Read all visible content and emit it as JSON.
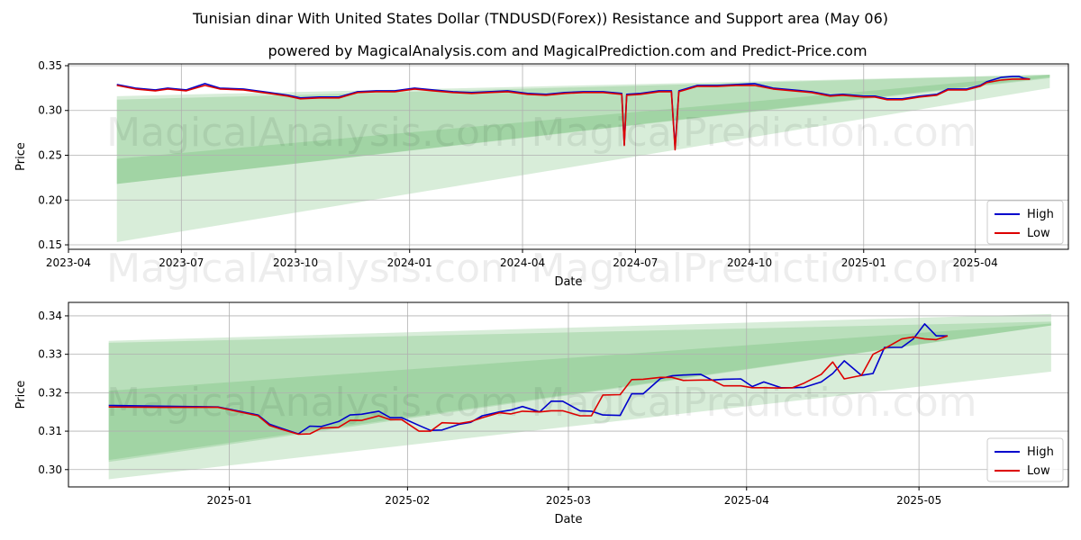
{
  "title": "Tunisian dinar With United States Dollar (TNDUSD(Forex)) Resistance and Support area (May 06)",
  "subtitle": "powered by MagicalAnalysis.com and MagicalPrediction.com and Predict-Price.com",
  "watermarks": [
    "MagicalAnalysis.com",
    "MagicalPrediction.com"
  ],
  "colors": {
    "high": "#0000cc",
    "low": "#dd0000",
    "band": "#4caf50",
    "grid": "#b0b0b0"
  },
  "chart_data": [
    {
      "type": "line",
      "xlabel": "Date",
      "ylabel": "Price",
      "legend": "lower-right",
      "grid": true,
      "xlim": [
        "2023-04-01",
        "2025-06-15"
      ],
      "ylim": [
        0.145,
        0.352
      ],
      "x_ticks": [
        "2023-04",
        "2023-07",
        "2023-10",
        "2024-01",
        "2024-04",
        "2024-07",
        "2024-10",
        "2025-01",
        "2025-04"
      ],
      "x_tick_dates": [
        "2023-04-01",
        "2023-07-01",
        "2023-10-01",
        "2024-01-01",
        "2024-04-01",
        "2024-07-01",
        "2024-10-01",
        "2025-01-01",
        "2025-04-01"
      ],
      "y_ticks": [
        "0.15",
        "0.20",
        "0.25",
        "0.30",
        "0.35"
      ],
      "y_tick_values": [
        0.15,
        0.2,
        0.25,
        0.3,
        0.35
      ],
      "bands": [
        {
          "x": [
            "2023-05-10",
            "2025-05-31"
          ],
          "upper": [
            0.316,
            0.34
          ],
          "lower": [
            0.153,
            0.325
          ]
        },
        {
          "x": [
            "2023-05-10",
            "2025-05-31"
          ],
          "upper": [
            0.312,
            0.34
          ],
          "lower": [
            0.218,
            0.336
          ]
        },
        {
          "x": [
            "2023-05-10",
            "2025-05-31"
          ],
          "upper": [
            0.246,
            0.34
          ],
          "lower": [
            0.218,
            0.337
          ]
        }
      ],
      "series": [
        {
          "name": "High",
          "x": [
            "2023-05-10",
            "2023-05-25",
            "2023-06-10",
            "2023-06-20",
            "2023-07-05",
            "2023-07-20",
            "2023-08-01",
            "2023-08-20",
            "2023-09-10",
            "2023-09-25",
            "2023-10-05",
            "2023-10-20",
            "2023-11-05",
            "2023-11-20",
            "2023-12-05",
            "2023-12-20",
            "2024-01-05",
            "2024-01-20",
            "2024-02-05",
            "2024-02-20",
            "2024-03-05",
            "2024-03-20",
            "2024-04-05",
            "2024-04-20",
            "2024-05-05",
            "2024-05-20",
            "2024-06-05",
            "2024-06-20",
            "2024-06-22",
            "2024-06-24",
            "2024-07-05",
            "2024-07-20",
            "2024-07-30",
            "2024-08-02",
            "2024-08-05",
            "2024-08-20",
            "2024-09-05",
            "2024-09-20",
            "2024-10-05",
            "2024-10-20",
            "2024-11-05",
            "2024-11-20",
            "2024-12-05",
            "2024-12-15",
            "2025-01-01",
            "2025-01-10",
            "2025-01-20",
            "2025-02-01",
            "2025-02-15",
            "2025-03-01",
            "2025-03-10",
            "2025-03-25",
            "2025-04-05",
            "2025-04-10",
            "2025-04-22",
            "2025-05-01",
            "2025-05-06",
            "2025-05-10",
            "2025-05-15"
          ],
          "values": [
            0.329,
            0.325,
            0.323,
            0.325,
            0.323,
            0.33,
            0.325,
            0.324,
            0.32,
            0.317,
            0.314,
            0.315,
            0.315,
            0.321,
            0.322,
            0.322,
            0.325,
            0.323,
            0.321,
            0.32,
            0.321,
            0.322,
            0.319,
            0.318,
            0.32,
            0.321,
            0.321,
            0.319,
            0.262,
            0.318,
            0.319,
            0.322,
            0.322,
            0.258,
            0.322,
            0.328,
            0.328,
            0.329,
            0.33,
            0.325,
            0.323,
            0.321,
            0.317,
            0.318,
            0.316,
            0.316,
            0.313,
            0.313,
            0.316,
            0.318,
            0.324,
            0.324,
            0.328,
            0.332,
            0.337,
            0.338,
            0.338,
            0.336,
            0.335
          ]
        },
        {
          "name": "Low",
          "x": [
            "2023-05-10",
            "2023-05-25",
            "2023-06-10",
            "2023-06-20",
            "2023-07-05",
            "2023-07-20",
            "2023-08-01",
            "2023-08-20",
            "2023-09-10",
            "2023-09-25",
            "2023-10-05",
            "2023-10-20",
            "2023-11-05",
            "2023-11-20",
            "2023-12-05",
            "2023-12-20",
            "2024-01-05",
            "2024-01-20",
            "2024-02-05",
            "2024-02-20",
            "2024-03-05",
            "2024-03-20",
            "2024-04-05",
            "2024-04-20",
            "2024-05-05",
            "2024-05-20",
            "2024-06-05",
            "2024-06-20",
            "2024-06-22",
            "2024-06-24",
            "2024-07-05",
            "2024-07-20",
            "2024-07-30",
            "2024-08-02",
            "2024-08-05",
            "2024-08-20",
            "2024-09-05",
            "2024-09-20",
            "2024-10-05",
            "2024-10-20",
            "2024-11-05",
            "2024-11-20",
            "2024-12-05",
            "2024-12-15",
            "2025-01-01",
            "2025-01-10",
            "2025-01-20",
            "2025-02-01",
            "2025-02-15",
            "2025-03-01",
            "2025-03-10",
            "2025-03-25",
            "2025-04-05",
            "2025-04-10",
            "2025-04-22",
            "2025-05-01",
            "2025-05-06",
            "2025-05-10",
            "2025-05-15"
          ],
          "values": [
            0.328,
            0.324,
            0.322,
            0.324,
            0.322,
            0.328,
            0.324,
            0.323,
            0.319,
            0.316,
            0.313,
            0.314,
            0.314,
            0.32,
            0.321,
            0.321,
            0.324,
            0.322,
            0.32,
            0.319,
            0.32,
            0.321,
            0.318,
            0.317,
            0.319,
            0.32,
            0.32,
            0.318,
            0.261,
            0.317,
            0.318,
            0.321,
            0.321,
            0.256,
            0.321,
            0.327,
            0.327,
            0.328,
            0.328,
            0.324,
            0.322,
            0.32,
            0.316,
            0.317,
            0.315,
            0.315,
            0.312,
            0.312,
            0.315,
            0.317,
            0.323,
            0.323,
            0.327,
            0.331,
            0.334,
            0.335,
            0.335,
            0.335,
            0.335
          ]
        }
      ]
    },
    {
      "type": "line",
      "xlabel": "Date",
      "ylabel": "Price",
      "legend": "lower-right",
      "grid": true,
      "xlim": [
        "2024-12-04",
        "2025-05-27"
      ],
      "ylim": [
        0.2955,
        0.3435
      ],
      "x_ticks": [
        "2025-01",
        "2025-02",
        "2025-03",
        "2025-04",
        "2025-05"
      ],
      "x_tick_dates": [
        "2025-01-01",
        "2025-02-01",
        "2025-03-01",
        "2025-04-01",
        "2025-05-01"
      ],
      "y_ticks": [
        "0.30",
        "0.31",
        "0.32",
        "0.33",
        "0.34"
      ],
      "y_tick_values": [
        0.3,
        0.31,
        0.32,
        0.33,
        0.34
      ],
      "bands": [
        {
          "x": [
            "2024-12-11",
            "2025-05-24"
          ],
          "upper": [
            0.3335,
            0.3405
          ],
          "lower": [
            0.2975,
            0.3255
          ]
        },
        {
          "x": [
            "2024-12-11",
            "2025-05-24"
          ],
          "upper": [
            0.333,
            0.3385
          ],
          "lower": [
            0.302,
            0.3375
          ]
        },
        {
          "x": [
            "2024-12-11",
            "2025-05-24"
          ],
          "upper": [
            0.3205,
            0.338
          ],
          "lower": [
            0.3025,
            0.3375
          ]
        }
      ],
      "series": [
        {
          "name": "High",
          "x": [
            "2024-12-11",
            "2024-12-20",
            "2024-12-30",
            "2025-01-06",
            "2025-01-08",
            "2025-01-10",
            "2025-01-13",
            "2025-01-15",
            "2025-01-17",
            "2025-01-20",
            "2025-01-22",
            "2025-01-24",
            "2025-01-27",
            "2025-01-29",
            "2025-01-31",
            "2025-02-03",
            "2025-02-05",
            "2025-02-07",
            "2025-02-10",
            "2025-02-12",
            "2025-02-14",
            "2025-02-17",
            "2025-02-19",
            "2025-02-21",
            "2025-02-24",
            "2025-02-26",
            "2025-02-28",
            "2025-03-03",
            "2025-03-05",
            "2025-03-07",
            "2025-03-10",
            "2025-03-12",
            "2025-03-14",
            "2025-03-17",
            "2025-03-19",
            "2025-03-21",
            "2025-03-24",
            "2025-03-26",
            "2025-03-28",
            "2025-03-31",
            "2025-04-02",
            "2025-04-04",
            "2025-04-07",
            "2025-04-09",
            "2025-04-11",
            "2025-04-14",
            "2025-04-16",
            "2025-04-18",
            "2025-04-21",
            "2025-04-23",
            "2025-04-25",
            "2025-04-28",
            "2025-04-30",
            "2025-05-02",
            "2025-05-04",
            "2025-05-06"
          ],
          "values": [
            0.3167,
            0.3165,
            0.3163,
            0.3142,
            0.3118,
            0.3108,
            0.3093,
            0.3113,
            0.3112,
            0.3125,
            0.3142,
            0.3144,
            0.3152,
            0.3135,
            0.3135,
            0.3115,
            0.3102,
            0.3103,
            0.3118,
            0.3123,
            0.314,
            0.315,
            0.3155,
            0.3164,
            0.315,
            0.3178,
            0.3178,
            0.3153,
            0.3152,
            0.3142,
            0.3141,
            0.3197,
            0.3197,
            0.3237,
            0.3244,
            0.3246,
            0.3248,
            0.3233,
            0.3235,
            0.3236,
            0.3216,
            0.3228,
            0.3213,
            0.3213,
            0.3214,
            0.3228,
            0.325,
            0.3283,
            0.3245,
            0.325,
            0.3318,
            0.3318,
            0.334,
            0.3379,
            0.3348,
            0.3348
          ]
        },
        {
          "name": "Low",
          "x": [
            "2024-12-11",
            "2024-12-20",
            "2024-12-30",
            "2025-01-06",
            "2025-01-08",
            "2025-01-10",
            "2025-01-13",
            "2025-01-15",
            "2025-01-17",
            "2025-01-20",
            "2025-01-22",
            "2025-01-24",
            "2025-01-27",
            "2025-01-29",
            "2025-01-31",
            "2025-02-03",
            "2025-02-05",
            "2025-02-07",
            "2025-02-10",
            "2025-02-12",
            "2025-02-14",
            "2025-02-17",
            "2025-02-19",
            "2025-02-21",
            "2025-02-24",
            "2025-02-26",
            "2025-02-28",
            "2025-03-03",
            "2025-03-05",
            "2025-03-07",
            "2025-03-10",
            "2025-03-12",
            "2025-03-14",
            "2025-03-17",
            "2025-03-19",
            "2025-03-21",
            "2025-03-24",
            "2025-03-26",
            "2025-03-28",
            "2025-03-31",
            "2025-04-02",
            "2025-04-04",
            "2025-04-07",
            "2025-04-09",
            "2025-04-11",
            "2025-04-14",
            "2025-04-16",
            "2025-04-18",
            "2025-04-21",
            "2025-04-23",
            "2025-04-25",
            "2025-04-28",
            "2025-04-30",
            "2025-05-02",
            "2025-05-04",
            "2025-05-06"
          ],
          "values": [
            0.3163,
            0.3162,
            0.3162,
            0.314,
            0.3115,
            0.3105,
            0.3092,
            0.3093,
            0.3108,
            0.311,
            0.3128,
            0.3128,
            0.314,
            0.313,
            0.313,
            0.31,
            0.31,
            0.3122,
            0.312,
            0.3125,
            0.3135,
            0.3148,
            0.3145,
            0.3152,
            0.315,
            0.3153,
            0.3153,
            0.314,
            0.314,
            0.3194,
            0.3195,
            0.3234,
            0.3235,
            0.324,
            0.324,
            0.3232,
            0.3233,
            0.3233,
            0.3218,
            0.3218,
            0.3213,
            0.3213,
            0.3212,
            0.3213,
            0.3225,
            0.3248,
            0.328,
            0.3236,
            0.3245,
            0.33,
            0.3315,
            0.334,
            0.3345,
            0.334,
            0.3338,
            0.3348
          ]
        }
      ]
    }
  ]
}
